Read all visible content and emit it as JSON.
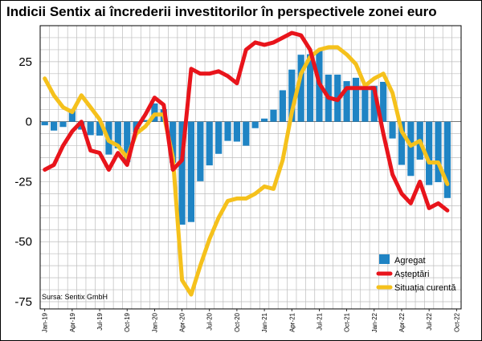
{
  "chart_data": {
    "type": "bar+line",
    "title": "Indicii Sentix ai încrederii investitorilor în perspectivele zonei euro",
    "source": "Sursa: Sentix GmbH",
    "ylim": [
      -78,
      40
    ],
    "yticks": [
      25,
      0,
      -25,
      -50,
      -75
    ],
    "yticks_labels": [
      "25",
      "0",
      "-25",
      "-50",
      "-75"
    ],
    "grid": true,
    "legend_position": "bottom-right",
    "x_tick_labels": [
      "Jan-19",
      "Apr-19",
      "Jul-19",
      "Oct-19",
      "Jan-20",
      "Apr-20",
      "Jul-20",
      "Oct-20",
      "Jan-21",
      "Apr-21",
      "Jul-21",
      "Oct-21",
      "Jan-22",
      "Apr-22",
      "Jul-22",
      "Oct-22"
    ],
    "months": [
      "Jan-19",
      "Feb-19",
      "Mar-19",
      "Apr-19",
      "May-19",
      "Jun-19",
      "Jul-19",
      "Aug-19",
      "Sep-19",
      "Oct-19",
      "Nov-19",
      "Dec-19",
      "Jan-20",
      "Feb-20",
      "Mar-20",
      "Apr-20",
      "May-20",
      "Jun-20",
      "Jul-20",
      "Aug-20",
      "Sep-20",
      "Oct-20",
      "Nov-20",
      "Dec-20",
      "Jan-21",
      "Feb-21",
      "Mar-21",
      "Apr-21",
      "May-21",
      "Jun-21",
      "Jul-21",
      "Aug-21",
      "Sep-21",
      "Oct-21",
      "Nov-21",
      "Dec-21",
      "Jan-22",
      "Feb-22",
      "Mar-22",
      "Apr-22",
      "May-22",
      "Jun-22",
      "Jul-22",
      "Aug-22",
      "Sep-22"
    ],
    "series": [
      {
        "name": "Agregat",
        "kind": "bar",
        "color": "#1f84c4",
        "values": [
          -1.5,
          -3.7,
          -2.2,
          5.3,
          -3.3,
          -5.6,
          -5.8,
          -13.7,
          -11.1,
          -16.8,
          -4.5,
          0.7,
          7.6,
          5.2,
          -17.1,
          -42.9,
          -41.8,
          -24.8,
          -18.2,
          -13.4,
          -8.0,
          -8.3,
          -10.0,
          -2.7,
          1.3,
          5.0,
          13.1,
          21.7,
          27.9,
          28.1,
          29.8,
          19.6,
          19.6,
          16.9,
          18.3,
          13.5,
          14.9,
          16.6,
          -7.0,
          -18.0,
          -22.6,
          -15.8,
          -26.4,
          -25.2,
          -31.8
        ]
      },
      {
        "name": "Așteptări",
        "kind": "line",
        "color": "#e8141b",
        "values": [
          -20,
          -18,
          -10,
          -4,
          0,
          -12,
          -13,
          -20,
          -13,
          -18,
          -3,
          3,
          10,
          7,
          -20,
          -16,
          22,
          20,
          20,
          21,
          19,
          16,
          30,
          33,
          32,
          33,
          35,
          37,
          36,
          30,
          16,
          10,
          9,
          14,
          14,
          14,
          14,
          -5,
          -22,
          -30,
          -34,
          -25,
          -36,
          -34,
          -37
        ]
      },
      {
        "name": "Situația curentă",
        "kind": "line",
        "color": "#f5c11c",
        "values": [
          18,
          11,
          6,
          4,
          11,
          6,
          1,
          -8,
          -10,
          -15,
          -5,
          -2,
          3,
          3,
          -15,
          -66,
          -72,
          -60,
          -49,
          -40,
          -33,
          -32,
          -32,
          -30,
          -27,
          -28,
          -16,
          4,
          20,
          27,
          30,
          31,
          31,
          28,
          24,
          15,
          18,
          20,
          12,
          -4,
          -10,
          -8,
          -17,
          -17,
          -26
        ]
      }
    ]
  }
}
